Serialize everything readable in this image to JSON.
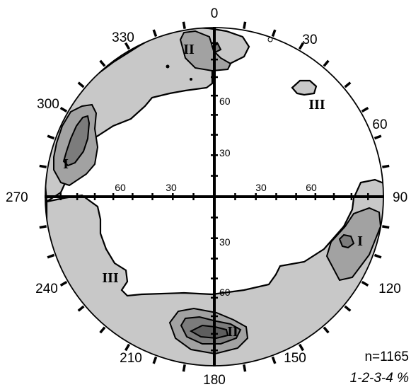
{
  "colors": {
    "level1": "#c8c8c8",
    "level2": "#a2a2a2",
    "level3": "#7c7c7c",
    "level4": "#5e5e5e",
    "line": "#000000"
  },
  "azimuth_labels": {
    "a0": "0",
    "a30": "30",
    "a60": "60",
    "a90": "90",
    "a120": "120",
    "a150": "150",
    "a180": "180",
    "a210": "210",
    "a240": "240",
    "a270": "270",
    "a300": "300",
    "a330": "330"
  },
  "dip_labels": {
    "north_60": "60",
    "north_30": "30",
    "south_30": "30",
    "south_60": "60",
    "west_60": "60",
    "west_30": "30",
    "east_30": "30",
    "east_60": "60"
  },
  "cluster_labels": {
    "ii_north": "II",
    "iii_northeast": "III",
    "i_west": "I",
    "i_east": "I",
    "iii_southwest": "III",
    "ii_south": "II"
  },
  "stats": {
    "count": "n=1165",
    "contours": "1-2-3-4 %"
  }
}
